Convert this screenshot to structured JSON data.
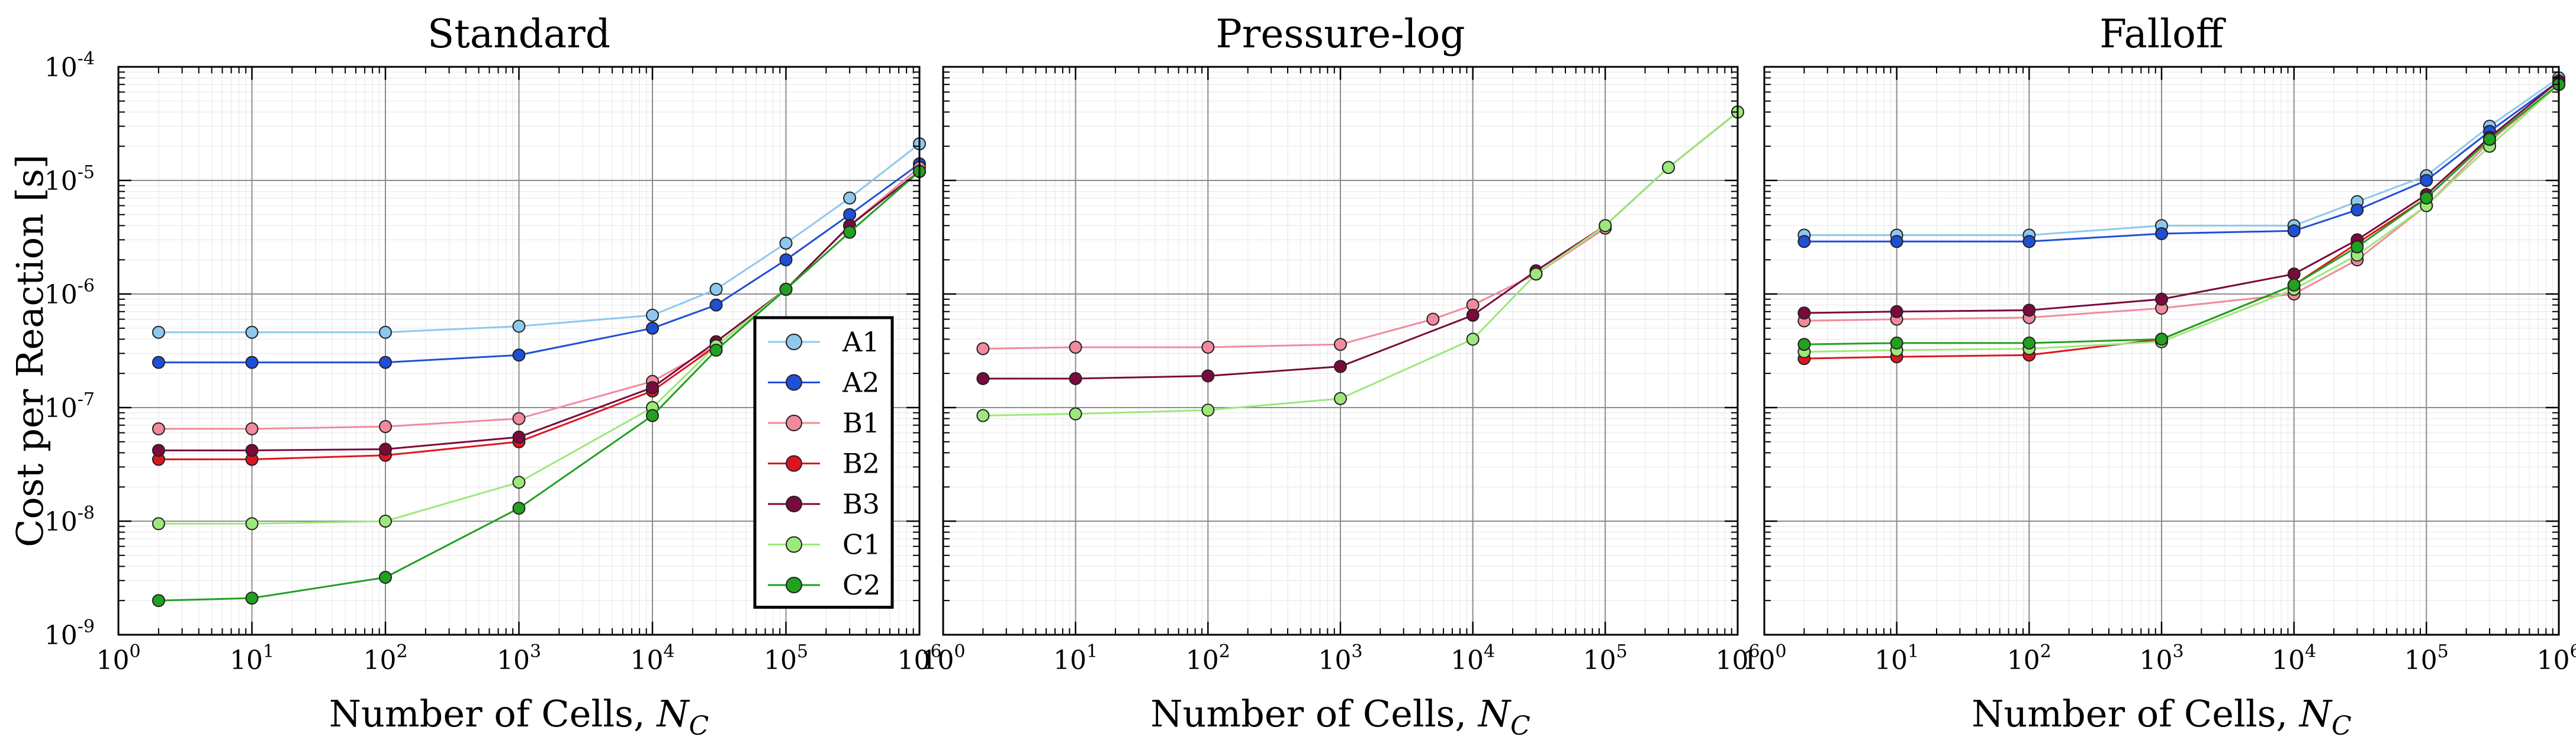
{
  "chart_data": [
    {
      "type": "scatter",
      "title": "Standard",
      "xlabel": "Number of Cells, N_C",
      "ylabel": "Cost per Reaction [s]",
      "xscale": "log",
      "yscale": "log",
      "xlim": [
        1,
        1000000
      ],
      "ylim": [
        1e-09,
        0.0001
      ],
      "legend_position": "lower-right",
      "series": [
        {
          "name": "A1",
          "color": "#8ec8ee",
          "points": [
            [
              2,
              4.6e-07
            ],
            [
              10,
              4.6e-07
            ],
            [
              100,
              4.6e-07
            ],
            [
              1000,
              5.2e-07
            ],
            [
              10000,
              6.5e-07
            ],
            [
              30000,
              1.1e-06
            ],
            [
              100000,
              2.8e-06
            ],
            [
              300000,
              7e-06
            ],
            [
              1000000,
              2.1e-05
            ]
          ]
        },
        {
          "name": "A2",
          "color": "#1f4fd6",
          "points": [
            [
              2,
              2.5e-07
            ],
            [
              10,
              2.5e-07
            ],
            [
              100,
              2.5e-07
            ],
            [
              1000,
              2.9e-07
            ],
            [
              10000,
              5e-07
            ],
            [
              30000,
              8e-07
            ],
            [
              100000,
              2e-06
            ],
            [
              300000,
              5e-06
            ],
            [
              1000000,
              1.4e-05
            ]
          ]
        },
        {
          "name": "B1",
          "color": "#f08a9c",
          "points": [
            [
              2,
              6.5e-08
            ],
            [
              10,
              6.5e-08
            ],
            [
              100,
              6.8e-08
            ],
            [
              1000,
              8e-08
            ],
            [
              10000,
              1.7e-07
            ],
            [
              30000,
              3.5e-07
            ],
            [
              100000,
              1.1e-06
            ],
            [
              300000,
              4e-06
            ],
            [
              1000000,
              1.3e-05
            ]
          ]
        },
        {
          "name": "B2",
          "color": "#e0141e",
          "points": [
            [
              2,
              3.5e-08
            ],
            [
              10,
              3.5e-08
            ],
            [
              100,
              3.8e-08
            ],
            [
              1000,
              5e-08
            ],
            [
              10000,
              1.4e-07
            ],
            [
              30000,
              3.5e-07
            ],
            [
              100000,
              1.1e-06
            ],
            [
              300000,
              4e-06
            ],
            [
              1000000,
              1.2e-05
            ]
          ]
        },
        {
          "name": "B3",
          "color": "#7a0a3c",
          "points": [
            [
              2,
              4.2e-08
            ],
            [
              10,
              4.2e-08
            ],
            [
              100,
              4.3e-08
            ],
            [
              1000,
              5.5e-08
            ],
            [
              10000,
              1.5e-07
            ],
            [
              30000,
              3.8e-07
            ],
            [
              100000,
              1.1e-06
            ],
            [
              300000,
              4e-06
            ],
            [
              1000000,
              1.2e-05
            ]
          ]
        },
        {
          "name": "C1",
          "color": "#9de87a",
          "points": [
            [
              2,
              9.5e-09
            ],
            [
              10,
              9.5e-09
            ],
            [
              100,
              1e-08
            ],
            [
              1000,
              2.2e-08
            ],
            [
              10000,
              1e-07
            ],
            [
              30000,
              3.5e-07
            ],
            [
              100000,
              1.1e-06
            ],
            [
              300000,
              3.5e-06
            ],
            [
              1000000,
              1.2e-05
            ]
          ]
        },
        {
          "name": "C2",
          "color": "#22a020",
          "points": [
            [
              2,
              2e-09
            ],
            [
              10,
              2.1e-09
            ],
            [
              100,
              3.2e-09
            ],
            [
              1000,
              1.3e-08
            ],
            [
              10000,
              8.5e-08
            ],
            [
              30000,
              3.2e-07
            ],
            [
              100000,
              1.1e-06
            ],
            [
              300000,
              3.5e-06
            ],
            [
              1000000,
              1.2e-05
            ]
          ]
        }
      ]
    },
    {
      "type": "scatter",
      "title": "Pressure-log",
      "xlabel": "Number of Cells, N_C",
      "xscale": "log",
      "yscale": "log",
      "xlim": [
        1,
        1000000
      ],
      "ylim": [
        1e-09,
        0.0001
      ],
      "series": [
        {
          "name": "B1",
          "color": "#f08a9c",
          "points": [
            [
              2,
              3.3e-07
            ],
            [
              10,
              3.4e-07
            ],
            [
              100,
              3.4e-07
            ],
            [
              1000,
              3.6e-07
            ],
            [
              5000,
              6e-07
            ],
            [
              10000,
              8e-07
            ],
            [
              30000,
              1.5e-06
            ],
            [
              100000,
              3.8e-06
            ]
          ]
        },
        {
          "name": "B3",
          "color": "#7a0a3c",
          "points": [
            [
              2,
              1.8e-07
            ],
            [
              10,
              1.8e-07
            ],
            [
              100,
              1.9e-07
            ],
            [
              1000,
              2.3e-07
            ],
            [
              10000,
              6.5e-07
            ],
            [
              30000,
              1.6e-06
            ],
            [
              100000,
              4e-06
            ],
            [
              300000,
              1.3e-05
            ],
            [
              1000000,
              4e-05
            ]
          ]
        },
        {
          "name": "C1",
          "color": "#9de87a",
          "points": [
            [
              2,
              8.5e-08
            ],
            [
              10,
              8.8e-08
            ],
            [
              100,
              9.5e-08
            ],
            [
              1000,
              1.2e-07
            ],
            [
              10000,
              4e-07
            ],
            [
              30000,
              1.5e-06
            ],
            [
              100000,
              4e-06
            ],
            [
              300000,
              1.3e-05
            ],
            [
              1000000,
              4e-05
            ]
          ]
        }
      ]
    },
    {
      "type": "scatter",
      "title": "Falloff",
      "xlabel": "Number of Cells, N_C",
      "xscale": "log",
      "yscale": "log",
      "xlim": [
        1,
        1000000
      ],
      "ylim": [
        1e-09,
        0.0001
      ],
      "series": [
        {
          "name": "A1",
          "color": "#8ec8ee",
          "points": [
            [
              2,
              3.3e-06
            ],
            [
              10,
              3.3e-06
            ],
            [
              100,
              3.3e-06
            ],
            [
              1000,
              4e-06
            ],
            [
              10000,
              4e-06
            ],
            [
              30000,
              6.5e-06
            ],
            [
              100000,
              1.1e-05
            ],
            [
              300000,
              3e-05
            ],
            [
              1000000,
              8e-05
            ]
          ]
        },
        {
          "name": "A2",
          "color": "#1f4fd6",
          "points": [
            [
              2,
              2.9e-06
            ],
            [
              10,
              2.9e-06
            ],
            [
              100,
              2.9e-06
            ],
            [
              1000,
              3.4e-06
            ],
            [
              10000,
              3.6e-06
            ],
            [
              30000,
              5.5e-06
            ],
            [
              100000,
              1e-05
            ],
            [
              300000,
              2.7e-05
            ],
            [
              1000000,
              7.5e-05
            ]
          ]
        },
        {
          "name": "B1",
          "color": "#f08a9c",
          "points": [
            [
              2,
              5.8e-07
            ],
            [
              10,
              6e-07
            ],
            [
              100,
              6.2e-07
            ],
            [
              1000,
              7.5e-07
            ],
            [
              10000,
              1e-06
            ],
            [
              30000,
              2e-06
            ],
            [
              100000,
              6e-06
            ],
            [
              300000,
              2.2e-05
            ],
            [
              1000000,
              7e-05
            ]
          ]
        },
        {
          "name": "B2",
          "color": "#e0141e",
          "points": [
            [
              2,
              2.7e-07
            ],
            [
              10,
              2.8e-07
            ],
            [
              100,
              2.9e-07
            ],
            [
              1000,
              4e-07
            ],
            [
              10000,
              1.2e-06
            ],
            [
              30000,
              2.8e-06
            ],
            [
              100000,
              7e-06
            ],
            [
              300000,
              2.3e-05
            ],
            [
              1000000,
              7e-05
            ]
          ]
        },
        {
          "name": "B3",
          "color": "#7a0a3c",
          "points": [
            [
              2,
              6.8e-07
            ],
            [
              10,
              7e-07
            ],
            [
              100,
              7.2e-07
            ],
            [
              1000,
              9e-07
            ],
            [
              10000,
              1.5e-06
            ],
            [
              30000,
              3e-06
            ],
            [
              100000,
              7.5e-06
            ],
            [
              300000,
              2.4e-05
            ],
            [
              1000000,
              7.5e-05
            ]
          ]
        },
        {
          "name": "C1",
          "color": "#9de87a",
          "points": [
            [
              2,
              3.1e-07
            ],
            [
              10,
              3.2e-07
            ],
            [
              100,
              3.3e-07
            ],
            [
              1000,
              3.8e-07
            ],
            [
              10000,
              1.1e-06
            ],
            [
              30000,
              2.2e-06
            ],
            [
              100000,
              6e-06
            ],
            [
              300000,
              2e-05
            ],
            [
              1000000,
              7e-05
            ]
          ]
        },
        {
          "name": "C2",
          "color": "#22a020",
          "points": [
            [
              2,
              3.6e-07
            ],
            [
              10,
              3.7e-07
            ],
            [
              100,
              3.7e-07
            ],
            [
              1000,
              4e-07
            ],
            [
              10000,
              1.2e-06
            ],
            [
              30000,
              2.6e-06
            ],
            [
              100000,
              7e-06
            ],
            [
              300000,
              2.3e-05
            ],
            [
              1000000,
              7e-05
            ]
          ]
        }
      ]
    }
  ]
}
